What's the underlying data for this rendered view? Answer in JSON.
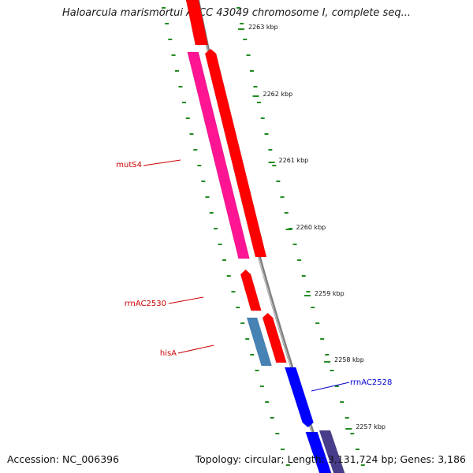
{
  "title": "Haloarcula marismortui ATCC 43049 chromosome I, complete seq...",
  "footer": {
    "accession": "Accession: NC_006396",
    "summary": "Topology: circular; Length: 3,131,724 bp; Genes: 3,186"
  },
  "ticks": [
    "2263 kbp",
    "2262 kbp",
    "2261 kbp",
    "2260 kbp",
    "2259 kbp",
    "2258 kbp",
    "2257 kbp"
  ],
  "gene_labels": [
    {
      "name": "mutS4",
      "strand": "reverse"
    },
    {
      "name": "rrnAC2530",
      "strand": "reverse"
    },
    {
      "name": "hisA",
      "strand": "reverse"
    },
    {
      "name": "rrnAC2528",
      "strand": "forward"
    }
  ],
  "colors": {
    "reverse_label": "#cc0000",
    "forward_label": "#0000cc",
    "cds": "#ff0000",
    "magenta_feature": "#ff1493",
    "steelblue_feature": "#4682b4",
    "blue_feature": "#0000ff",
    "slate_feature": "#483d8b",
    "gc_dashes": "#228b22",
    "backbone": "#808080"
  }
}
